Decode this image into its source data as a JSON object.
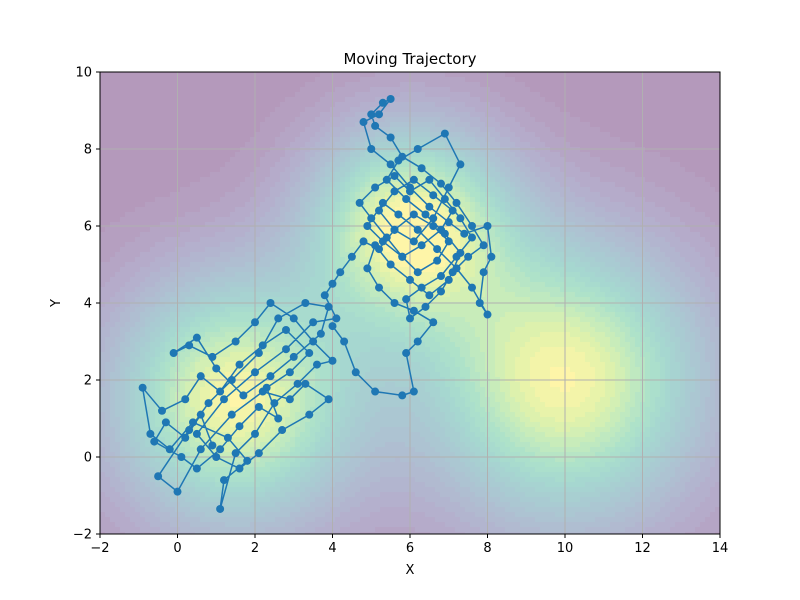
{
  "chart_data": {
    "type": "line",
    "title": "Moving Trajectory",
    "xlabel": "X",
    "ylabel": "Y",
    "xlim": [
      -2,
      14
    ],
    "ylim": [
      -2,
      10
    ],
    "x_ticks": [
      -2,
      0,
      2,
      4,
      6,
      8,
      10,
      12,
      14
    ],
    "y_ticks": [
      -2,
      0,
      2,
      4,
      6,
      8,
      10
    ],
    "x_tick_labels": [
      "−2",
      "0",
      "2",
      "4",
      "6",
      "8",
      "10",
      "12",
      "14"
    ],
    "y_tick_labels": [
      "−2",
      "0",
      "2",
      "4",
      "6",
      "8",
      "10"
    ],
    "grid": true,
    "background": {
      "type": "contourf",
      "colormap": "viridis",
      "alpha": 0.4,
      "peaks": [
        {
          "center": [
            1.5,
            1.5
          ],
          "sigma": [
            2.2,
            2.2
          ],
          "amp": 1.0
        },
        {
          "center": [
            6.0,
            6.0
          ],
          "sigma": [
            1.8,
            1.8
          ],
          "amp": 1.0
        },
        {
          "center": [
            10.0,
            2.0
          ],
          "sigma": [
            2.5,
            2.5
          ],
          "amp": 1.0
        }
      ]
    },
    "series": [
      {
        "color": "#1f77b4",
        "marker": "o",
        "points": [
          [
            0.9,
            0.3
          ],
          [
            0.6,
            1.1
          ],
          [
            0.2,
            0.5
          ],
          [
            -0.3,
            0.9
          ],
          [
            -0.6,
            0.4
          ],
          [
            0.1,
            0.0
          ],
          [
            0.5,
            -0.3
          ],
          [
            1.1,
            0.2
          ],
          [
            1.6,
            0.8
          ],
          [
            2.1,
            1.3
          ],
          [
            2.6,
            1.0
          ],
          [
            2.3,
            1.8
          ],
          [
            2.9,
            2.2
          ],
          [
            3.4,
            2.7
          ],
          [
            2.8,
            3.3
          ],
          [
            2.2,
            2.9
          ],
          [
            1.6,
            2.4
          ],
          [
            1.1,
            1.7
          ],
          [
            0.6,
            2.1
          ],
          [
            0.2,
            1.5
          ],
          [
            -0.4,
            1.2
          ],
          [
            -0.9,
            1.8
          ],
          [
            -0.7,
            0.6
          ],
          [
            -0.2,
            0.2
          ],
          [
            0.4,
            0.9
          ],
          [
            1.3,
            0.5
          ],
          [
            1.8,
            -0.1
          ],
          [
            1.2,
            -0.6
          ],
          [
            1.1,
            -1.35
          ],
          [
            1.5,
            0.1
          ],
          [
            2.0,
            0.6
          ],
          [
            2.5,
            1.4
          ],
          [
            3.1,
            1.9
          ],
          [
            3.6,
            2.4
          ],
          [
            4.0,
            2.5
          ],
          [
            3.5,
            3.0
          ],
          [
            3.0,
            3.6
          ],
          [
            2.4,
            4.0
          ],
          [
            2.0,
            3.5
          ],
          [
            1.5,
            3.0
          ],
          [
            0.9,
            2.6
          ],
          [
            0.3,
            2.9
          ],
          [
            -0.1,
            2.7
          ],
          [
            0.5,
            3.1
          ],
          [
            1.0,
            2.3
          ],
          [
            1.7,
            1.6
          ],
          [
            2.4,
            2.1
          ],
          [
            3.0,
            2.6
          ],
          [
            3.7,
            3.2
          ],
          [
            3.9,
            3.9
          ],
          [
            3.3,
            4.0
          ],
          [
            2.6,
            3.6
          ],
          [
            2.1,
            2.7
          ],
          [
            1.4,
            2.0
          ],
          [
            0.8,
            1.4
          ],
          [
            0.3,
            0.7
          ],
          [
            -0.5,
            -0.5
          ],
          [
            0.0,
            -0.9
          ],
          [
            0.6,
            0.2
          ],
          [
            1.4,
            1.1
          ],
          [
            2.2,
            1.7
          ],
          [
            2.9,
            1.5
          ],
          [
            3.3,
            1.9
          ],
          [
            3.9,
            1.5
          ],
          [
            3.4,
            1.1
          ],
          [
            2.7,
            0.7
          ],
          [
            2.1,
            0.1
          ],
          [
            1.6,
            -0.3
          ],
          [
            1.0,
            0.0
          ],
          [
            0.5,
            0.6
          ],
          [
            1.2,
            1.5
          ],
          [
            2.0,
            2.2
          ],
          [
            2.8,
            2.8
          ],
          [
            3.5,
            3.5
          ],
          [
            4.1,
            3.6
          ],
          [
            3.8,
            4.2
          ],
          [
            4.0,
            4.5
          ],
          [
            4.2,
            4.8
          ],
          [
            4.5,
            5.2
          ],
          [
            4.8,
            5.6
          ],
          [
            5.2,
            5.4
          ],
          [
            5.6,
            5.9
          ],
          [
            6.1,
            6.3
          ],
          [
            6.6,
            6.0
          ],
          [
            7.0,
            5.6
          ],
          [
            6.7,
            5.1
          ],
          [
            6.2,
            4.8
          ],
          [
            5.8,
            5.2
          ],
          [
            5.4,
            5.7
          ],
          [
            5.0,
            6.2
          ],
          [
            4.7,
            6.6
          ],
          [
            5.1,
            7.0
          ],
          [
            5.6,
            7.3
          ],
          [
            6.0,
            6.9
          ],
          [
            6.5,
            7.2
          ],
          [
            6.9,
            6.7
          ],
          [
            7.3,
            6.2
          ],
          [
            7.6,
            5.7
          ],
          [
            7.2,
            5.2
          ],
          [
            6.8,
            4.7
          ],
          [
            6.3,
            4.4
          ],
          [
            5.9,
            4.1
          ],
          [
            6.0,
            3.6
          ],
          [
            6.4,
            3.9
          ],
          [
            6.8,
            4.3
          ],
          [
            7.1,
            4.8
          ],
          [
            7.5,
            5.2
          ],
          [
            7.9,
            5.5
          ],
          [
            7.6,
            6.0
          ],
          [
            7.2,
            6.6
          ],
          [
            6.8,
            7.1
          ],
          [
            6.3,
            7.5
          ],
          [
            5.8,
            7.8
          ],
          [
            5.5,
            8.3
          ],
          [
            5.1,
            8.6
          ],
          [
            5.0,
            8.9
          ],
          [
            5.3,
            9.2
          ],
          [
            5.5,
            9.3
          ],
          [
            5.2,
            8.9
          ],
          [
            4.8,
            8.7
          ],
          [
            5.0,
            8.0
          ],
          [
            5.5,
            7.6
          ],
          [
            6.0,
            7.0
          ],
          [
            6.5,
            6.5
          ],
          [
            7.0,
            6.1
          ],
          [
            7.4,
            5.8
          ],
          [
            8.0,
            6.0
          ],
          [
            8.1,
            5.2
          ],
          [
            7.9,
            4.8
          ],
          [
            7.8,
            4.0
          ],
          [
            8.0,
            3.7
          ],
          [
            7.6,
            4.4
          ],
          [
            7.2,
            4.9
          ],
          [
            6.7,
            5.4
          ],
          [
            6.2,
            5.9
          ],
          [
            5.7,
            6.3
          ],
          [
            5.3,
            6.6
          ],
          [
            4.9,
            6.0
          ],
          [
            5.3,
            5.6
          ],
          [
            5.8,
            5.2
          ],
          [
            6.3,
            5.5
          ],
          [
            6.8,
            5.9
          ],
          [
            7.1,
            6.4
          ],
          [
            6.6,
            6.8
          ],
          [
            6.1,
            7.2
          ],
          [
            5.6,
            6.9
          ],
          [
            5.2,
            6.4
          ],
          [
            5.6,
            5.9
          ],
          [
            6.1,
            5.6
          ],
          [
            6.6,
            6.2
          ],
          [
            7.0,
            7.0
          ],
          [
            7.3,
            7.6
          ],
          [
            6.9,
            8.4
          ],
          [
            6.2,
            8.0
          ],
          [
            5.7,
            7.7
          ],
          [
            5.4,
            7.2
          ],
          [
            5.9,
            6.7
          ],
          [
            6.4,
            6.3
          ],
          [
            6.9,
            5.8
          ],
          [
            7.3,
            5.3
          ],
          [
            7.0,
            4.6
          ],
          [
            6.5,
            4.2
          ],
          [
            6.0,
            4.6
          ],
          [
            5.5,
            5.0
          ],
          [
            5.1,
            5.5
          ],
          [
            4.9,
            4.9
          ],
          [
            5.2,
            4.4
          ],
          [
            5.6,
            4.0
          ],
          [
            6.1,
            3.8
          ],
          [
            6.6,
            3.5
          ],
          [
            6.2,
            3.0
          ],
          [
            5.9,
            2.7
          ],
          [
            6.1,
            1.7
          ],
          [
            5.8,
            1.6
          ],
          [
            5.1,
            1.7
          ],
          [
            4.6,
            2.2
          ],
          [
            4.3,
            3.0
          ],
          [
            4.0,
            3.4
          ]
        ]
      }
    ]
  }
}
